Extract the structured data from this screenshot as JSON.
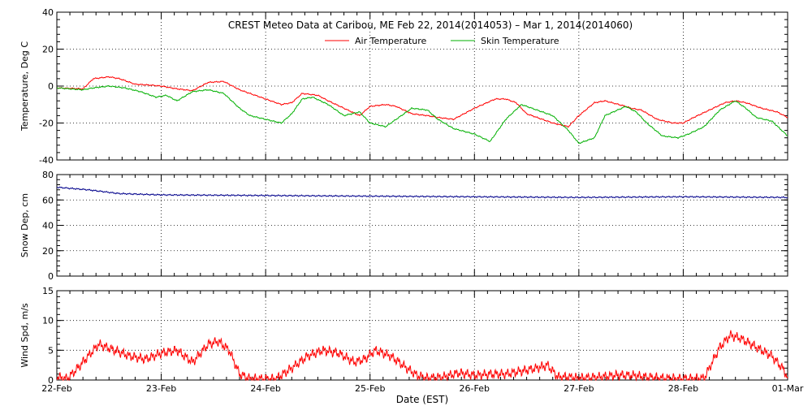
{
  "title": "CREST Meteo Data at Caribou, ME   Feb 22, 2014(2014053) – Mar  1, 2014(2014060)",
  "xlabel": "Date (EST)",
  "x_ticks": [
    "22-Feb",
    "23-Feb",
    "24-Feb",
    "25-Feb",
    "26-Feb",
    "27-Feb",
    "28-Feb",
    "01-Mar"
  ],
  "chart_data": [
    {
      "type": "line",
      "ylabel": "Temperature, Deg C",
      "ylim": [
        -40,
        40
      ],
      "y_ticks": [
        -40,
        -20,
        0,
        20,
        40
      ],
      "grid": true,
      "legend": "top-center",
      "series": [
        {
          "name": "Air Temperature",
          "color": "#ff0000",
          "x_days": [
            0,
            0.25,
            0.35,
            0.5,
            0.6,
            0.75,
            0.9,
            1.0,
            1.15,
            1.3,
            1.45,
            1.6,
            1.75,
            1.85,
            2.0,
            2.15,
            2.25,
            2.35,
            2.5,
            2.6,
            2.75,
            2.9,
            3.0,
            3.15,
            3.25,
            3.4,
            3.55,
            3.65,
            3.8,
            4.0,
            4.2,
            4.3,
            4.4,
            4.5,
            4.6,
            4.75,
            4.9,
            5.0,
            5.15,
            5.25,
            5.45,
            5.5,
            5.6,
            5.75,
            5.9,
            6.0,
            6.1,
            6.25,
            6.4,
            6.5,
            6.6,
            6.75,
            6.9,
            7.0
          ],
          "values": [
            -1,
            -1.5,
            4,
            5,
            4,
            1,
            0.5,
            0,
            -1.5,
            -2.5,
            2,
            2.5,
            -2,
            -4,
            -7,
            -10,
            -9,
            -4,
            -5,
            -8,
            -12,
            -16,
            -11,
            -10,
            -11,
            -15,
            -16,
            -17,
            -18,
            -12,
            -7,
            -7,
            -9,
            -15,
            -17,
            -20,
            -22,
            -16,
            -9,
            -8,
            -11,
            -12,
            -13,
            -18,
            -20,
            -20,
            -17,
            -13,
            -9,
            -8,
            -9,
            -12,
            -14,
            -17
          ]
        },
        {
          "name": "Skin Temperature",
          "color": "#00b000",
          "x_days": [
            0,
            0.25,
            0.35,
            0.5,
            0.65,
            0.8,
            0.95,
            1.05,
            1.15,
            1.3,
            1.45,
            1.6,
            1.75,
            1.85,
            2.0,
            2.15,
            2.25,
            2.35,
            2.45,
            2.6,
            2.75,
            2.9,
            3.0,
            3.15,
            3.25,
            3.4,
            3.55,
            3.65,
            3.8,
            4.0,
            4.15,
            4.3,
            4.45,
            4.55,
            4.75,
            4.9,
            5.0,
            5.15,
            5.25,
            5.45,
            5.55,
            5.65,
            5.8,
            5.95,
            6.05,
            6.2,
            6.35,
            6.5,
            6.6,
            6.7,
            6.85,
            7.0
          ],
          "values": [
            -1,
            -2,
            -1,
            0,
            -1,
            -3,
            -6,
            -5,
            -8,
            -3,
            -2,
            -4,
            -12,
            -16,
            -18,
            -20,
            -15,
            -7,
            -6,
            -10,
            -16,
            -14,
            -20,
            -22,
            -18,
            -12,
            -13,
            -18,
            -23,
            -26,
            -30,
            -18,
            -10,
            -12,
            -16,
            -24,
            -31,
            -28,
            -16,
            -11,
            -14,
            -20,
            -27,
            -28,
            -26,
            -22,
            -13,
            -8,
            -12,
            -17,
            -19,
            -27
          ]
        }
      ]
    },
    {
      "type": "line",
      "ylabel": "Snow Dep, cm",
      "ylim": [
        0,
        80
      ],
      "y_ticks": [
        0,
        20,
        40,
        60,
        80
      ],
      "grid": true,
      "series": [
        {
          "color": "#00008b",
          "x_days": [
            0,
            0.3,
            0.6,
            1.0,
            2.0,
            3.0,
            4.0,
            5.0,
            6.0,
            7.0
          ],
          "values": [
            70,
            68,
            65,
            64,
            63.5,
            63,
            62.5,
            62,
            62.5,
            62
          ]
        }
      ]
    },
    {
      "type": "line",
      "ylabel": "Wind Spd, m/s",
      "ylim": [
        0,
        15
      ],
      "y_ticks": [
        0,
        5,
        10,
        15
      ],
      "grid": true,
      "series": [
        {
          "color": "#ff0000",
          "x_days": [
            0,
            0.1,
            0.2,
            0.3,
            0.4,
            0.55,
            0.7,
            0.85,
            1.0,
            1.15,
            1.3,
            1.45,
            1.55,
            1.65,
            1.75,
            1.85,
            1.95,
            2.1,
            2.25,
            2.4,
            2.55,
            2.7,
            2.85,
            2.95,
            3.05,
            3.2,
            3.35,
            3.45,
            3.55,
            3.7,
            3.85,
            4.0,
            4.15,
            4.3,
            4.45,
            4.6,
            4.7,
            4.8,
            4.9,
            5.0,
            5.2,
            5.35,
            5.5,
            5.65,
            5.8,
            6.0,
            6.2,
            6.35,
            6.45,
            6.55,
            6.65,
            6.75,
            6.85,
            6.95,
            7.0
          ],
          "values": [
            0.5,
            0.2,
            2,
            4,
            6,
            5,
            4,
            3.5,
            4.5,
            5,
            3,
            6,
            6.5,
            5,
            1,
            0.2,
            0.2,
            0.2,
            2,
            4,
            5,
            4.5,
            3,
            3.5,
            5,
            4,
            2,
            0.8,
            0.3,
            0.5,
            1.2,
            0.8,
            1,
            1,
            1.5,
            2,
            2.5,
            0.5,
            0.5,
            0.3,
            0.5,
            0.8,
            0.8,
            0.5,
            0.3,
            0.2,
            0.3,
            5.5,
            7.5,
            7,
            6,
            5,
            4,
            2,
            0.5
          ]
        }
      ]
    }
  ]
}
